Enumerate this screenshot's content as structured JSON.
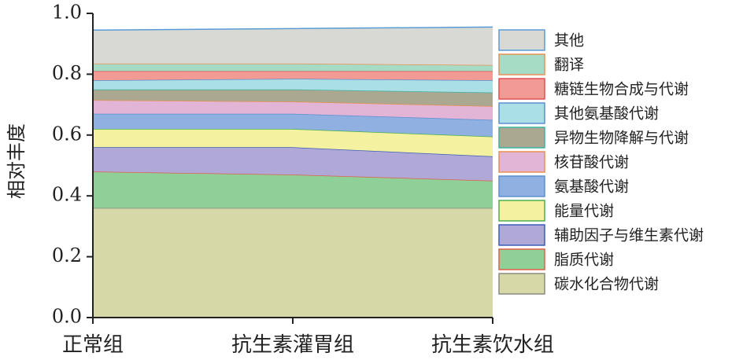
{
  "chart_data": {
    "type": "stacked_area",
    "y_label": "相对丰度",
    "categories": [
      "正常组",
      "抗生素灌胃组",
      "抗生素饮水组"
    ],
    "ylim": [
      0,
      1.0
    ],
    "yticks": [
      {
        "value": 0,
        "label": "0.0"
      },
      0.2,
      0.4,
      0.6,
      0.8,
      {
        "value": 1.0,
        "label": "1.0"
      }
    ],
    "series": [
      {
        "name": "碳水化合物代谢",
        "color": "#d6d8a8",
        "edge": "#8a8a80",
        "values": [
          0.36,
          0.36,
          0.36
        ]
      },
      {
        "name": "脂质代谢",
        "color": "#8fcf98",
        "edge": "#e0604a",
        "values": [
          0.12,
          0.11,
          0.09
        ]
      },
      {
        "name": "辅助因子与维生素代谢",
        "color": "#b0a8d6",
        "edge": "#3a5cb8",
        "values": [
          0.08,
          0.09,
          0.08
        ]
      },
      {
        "name": "能量代谢",
        "color": "#f4f2a0",
        "edge": "#4cb050",
        "values": [
          0.06,
          0.06,
          0.065
        ]
      },
      {
        "name": "氨基酸代谢",
        "color": "#8fb0e0",
        "edge": "#5b8fd0",
        "values": [
          0.05,
          0.05,
          0.055
        ]
      },
      {
        "name": "核苷酸代谢",
        "color": "#e2b4d6",
        "edge": "#e89050",
        "values": [
          0.045,
          0.04,
          0.045
        ]
      },
      {
        "name": "异物生物降解与代谢",
        "color": "#aaa890",
        "edge": "#40b0a0",
        "values": [
          0.035,
          0.04,
          0.045
        ]
      },
      {
        "name": "其他氨基酸代谢",
        "color": "#aadfe6",
        "edge": "#5b8fd0",
        "values": [
          0.03,
          0.035,
          0.04
        ]
      },
      {
        "name": "糖链生物合成与代谢",
        "color": "#f29b94",
        "edge": "#e05050",
        "values": [
          0.03,
          0.025,
          0.03
        ]
      },
      {
        "name": "翻译",
        "color": "#a6dcc6",
        "edge": "#e89050",
        "values": [
          0.025,
          0.025,
          0.02
        ]
      },
      {
        "name": "其他",
        "color": "#d8d8d4",
        "edge": "#5b9bd5",
        "values": [
          0.11,
          0.115,
          0.125
        ]
      }
    ]
  }
}
